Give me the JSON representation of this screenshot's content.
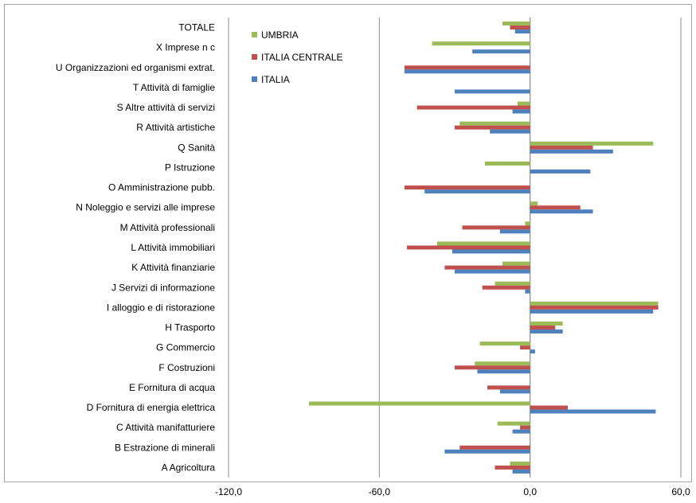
{
  "chart_data": {
    "type": "bar",
    "orientation": "horizontal",
    "categories": [
      "TOTALE",
      "X Imprese n c",
      "U Organizzazioni ed organismi extrat.",
      "T Attività di famiglie",
      "S Altre attività di servizi",
      "R Attività artistiche",
      "Q Sanità",
      "P Istruzione",
      "O Amministrazione pubb.",
      "N Noleggio e servizi alle imprese",
      "M Attività professionali",
      "L Attività immobiliari",
      "K Attività finanziarie",
      "J Servizi di informazione",
      "I alloggio e di ristorazione",
      "H Trasporto",
      "G Commercio",
      "F Costruzioni",
      "E Fornitura di acqua",
      "D Fornitura di energia elettrica",
      "C Attività manifatturiere",
      "B Estrazione di minerali",
      "A Agricoltura"
    ],
    "series": [
      {
        "name": "UMBRIA",
        "color": "#9BBB59",
        "values": [
          -11,
          -39,
          0,
          0,
          -5,
          -28,
          49,
          -18,
          0,
          3,
          -2,
          -37,
          -11,
          -14,
          51,
          13,
          -20,
          -22,
          0,
          -88,
          -13,
          0,
          -8
        ]
      },
      {
        "name": "ITALIA CENTRALE",
        "color": "#C0504D",
        "values": [
          -8,
          0,
          -50,
          0,
          -45,
          -30,
          25,
          0,
          -50,
          20,
          -27,
          -49,
          -34,
          -19,
          51,
          10,
          -4,
          -30,
          -17,
          15,
          -4,
          -28,
          -14
        ]
      },
      {
        "name": "ITALIA",
        "color": "#4F81BD",
        "values": [
          -6,
          -23,
          -50,
          -30,
          -7,
          -16,
          33,
          24,
          -42,
          25,
          -12,
          -31,
          -30,
          -2,
          49,
          13,
          2,
          -21,
          -12,
          50,
          -7,
          -34,
          -7
        ]
      }
    ],
    "xlim": [
      -120,
      60
    ],
    "xticks": [
      "-120,0",
      "-60,0",
      "0,0",
      "60,0"
    ],
    "xtick_values": [
      -120,
      -60,
      0,
      60
    ],
    "grid": "vertical",
    "legend": "top-left",
    "title": "",
    "xlabel": "",
    "ylabel": ""
  }
}
